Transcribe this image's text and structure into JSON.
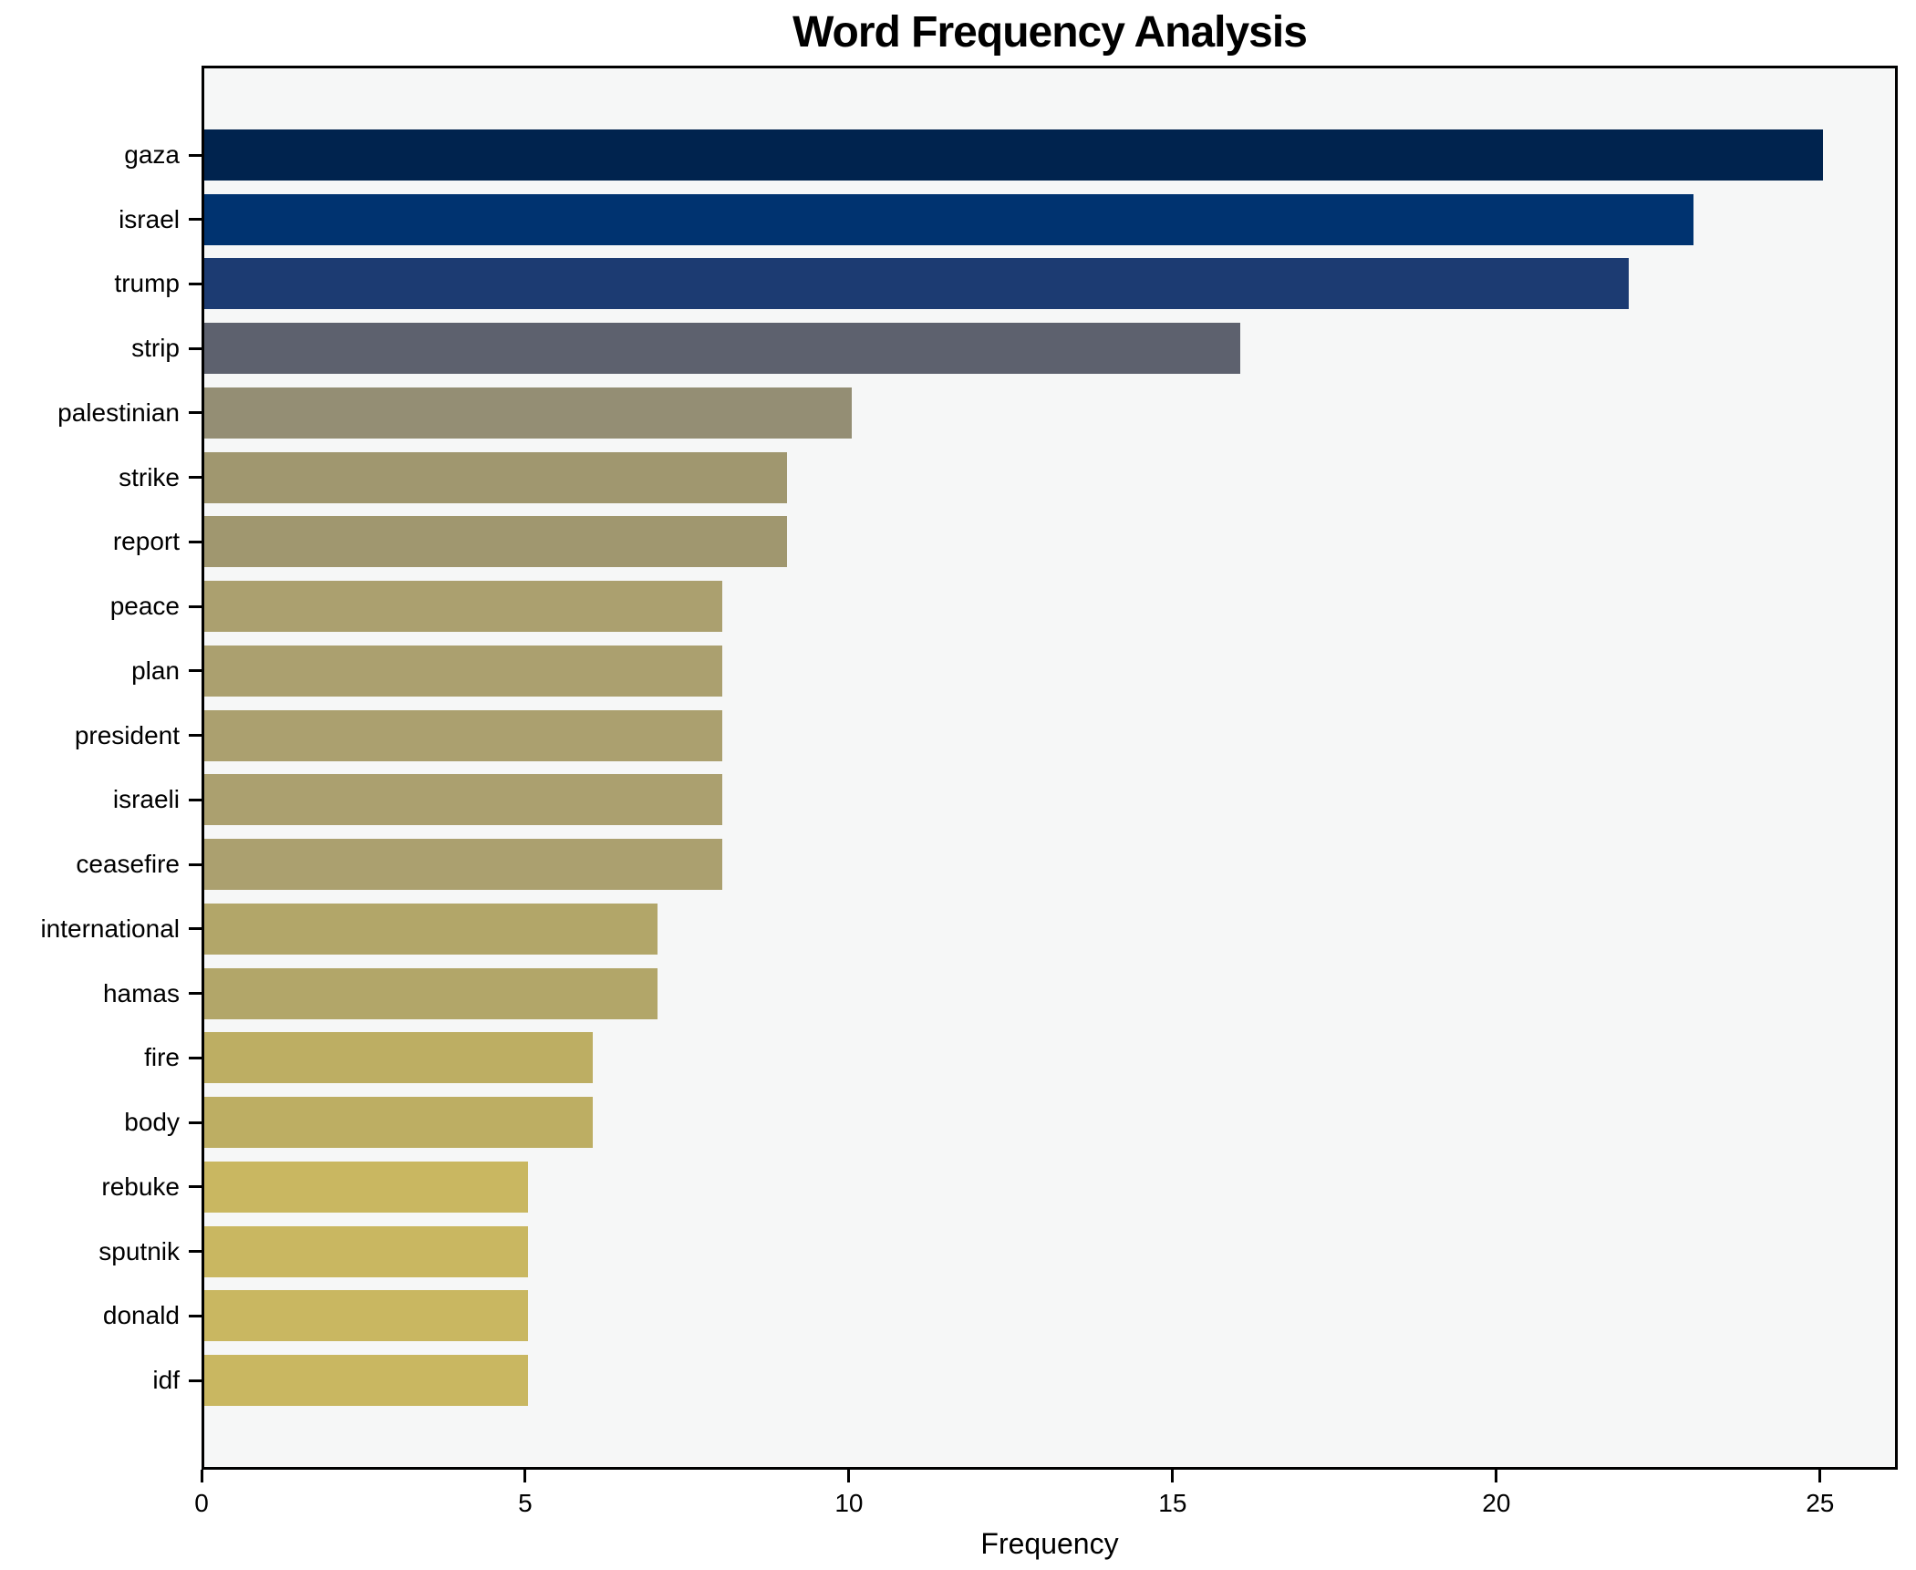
{
  "title": "Word Frequency Analysis",
  "chart_data": {
    "type": "bar",
    "orientation": "horizontal",
    "title": "Word Frequency Analysis",
    "xlabel": "Frequency",
    "ylabel": "",
    "categories": [
      "gaza",
      "israel",
      "trump",
      "strip",
      "palestinian",
      "strike",
      "report",
      "peace",
      "plan",
      "president",
      "israeli",
      "ceasefire",
      "international",
      "hamas",
      "fire",
      "body",
      "rebuke",
      "sputnik",
      "donald",
      "idf"
    ],
    "values": [
      25,
      23,
      22,
      16,
      10,
      9,
      9,
      8,
      8,
      8,
      8,
      8,
      7,
      7,
      6,
      6,
      5,
      5,
      5,
      5
    ],
    "bar_colors": [
      "#00234e",
      "#003370",
      "#1c3b72",
      "#5d616e",
      "#948e74",
      "#a0976f",
      "#a0976f",
      "#aba06f",
      "#aba06f",
      "#aba06f",
      "#aba06f",
      "#aba06f",
      "#b2a669",
      "#b2a669",
      "#bdae63",
      "#bdae63",
      "#c9b761",
      "#c9b761",
      "#c9b761",
      "#c9b761"
    ],
    "xticks": [
      0,
      5,
      10,
      15,
      20,
      25
    ],
    "xtick_labels": [
      "0",
      "5",
      "10",
      "15",
      "20",
      "25"
    ],
    "xlim": [
      0,
      26.2
    ],
    "grid": false,
    "legend": null,
    "colors": {
      "plot_background": "#f6f7f7",
      "figure_background": "#ffffff",
      "spine": "#000000",
      "text": "#000000"
    }
  }
}
